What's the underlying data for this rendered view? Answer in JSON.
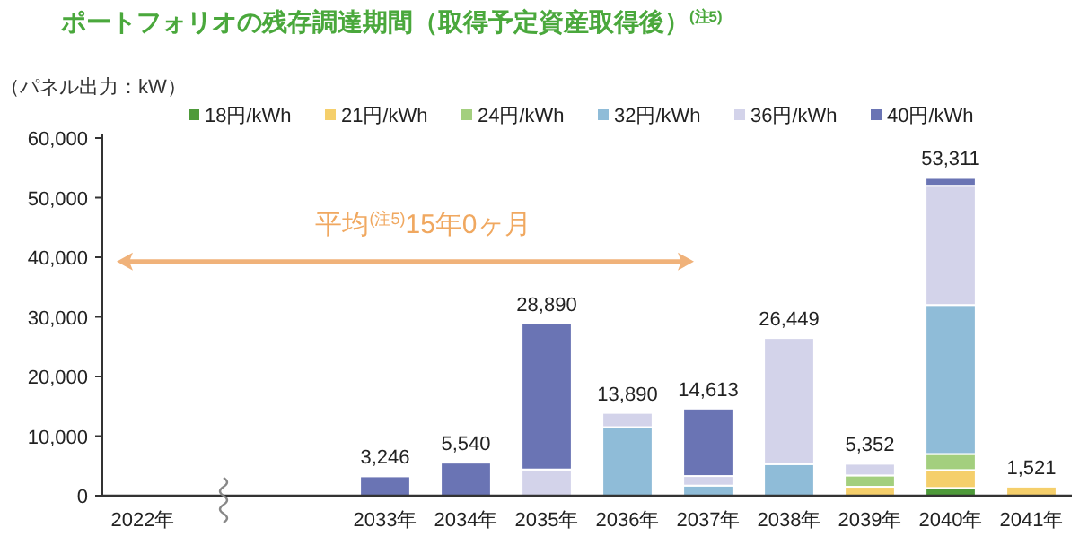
{
  "chart_data": {
    "type": "bar",
    "stacked": true,
    "title": "ポートフォリオの残存調達期間（取得予定資産取得後）$^{(注5)}$",
    "ylabel": "（パネル出力：kW）",
    "categories": [
      "2022年",
      null,
      null,
      "2033年",
      "2034年",
      "2035年",
      "2036年",
      "2037年",
      "2038年",
      "2039年",
      "2040年",
      "2041年"
    ],
    "series": [
      {
        "name": "18円/kWh",
        "color": "#4e9a3a",
        "values": [
          null,
          null,
          null,
          null,
          null,
          null,
          null,
          null,
          null,
          null,
          1300,
          null
        ]
      },
      {
        "name": "21円/kWh",
        "color": "#f5cf6b",
        "values": [
          null,
          null,
          null,
          null,
          null,
          null,
          null,
          null,
          null,
          1500,
          3000,
          1521
        ]
      },
      {
        "name": "24円/kWh",
        "color": "#a3cf7e",
        "values": [
          null,
          null,
          null,
          null,
          null,
          null,
          null,
          null,
          null,
          1900,
          2700,
          null
        ]
      },
      {
        "name": "32円/kWh",
        "color": "#8fbcd8",
        "values": [
          null,
          null,
          null,
          null,
          null,
          null,
          11500,
          1700,
          5300,
          null,
          25000,
          null
        ]
      },
      {
        "name": "36円/kWh",
        "color": "#d3d3ea",
        "values": [
          null,
          null,
          null,
          null,
          null,
          4400,
          2390,
          1600,
          21149,
          1952,
          20000,
          null
        ]
      },
      {
        "name": "40円/kWh",
        "color": "#6a74b4",
        "values": [
          null,
          null,
          null,
          3246,
          5540,
          24490,
          null,
          11313,
          null,
          null,
          1311,
          null
        ]
      }
    ],
    "totals": [
      null,
      null,
      null,
      "3,246",
      "5,540",
      "28,890",
      "13,890",
      "14,613",
      "26,449",
      "5,352",
      "53,311",
      "1,521"
    ],
    "ylim": [
      0,
      60000
    ],
    "yticks": [
      0,
      {
        "value": 10000,
        "label": "10,000"
      },
      {
        "value": 20000,
        "label": "20,000"
      },
      {
        "value": 30000,
        "label": "30,000"
      },
      {
        "value": 40000,
        "label": "40,000"
      },
      {
        "value": 50000,
        "label": "50,000"
      },
      {
        "value": 60000,
        "label": "60,000"
      }
    ],
    "legend": "top",
    "annotations": [
      "平均$^{(注5)}$15年0ヶ月"
    ]
  }
}
